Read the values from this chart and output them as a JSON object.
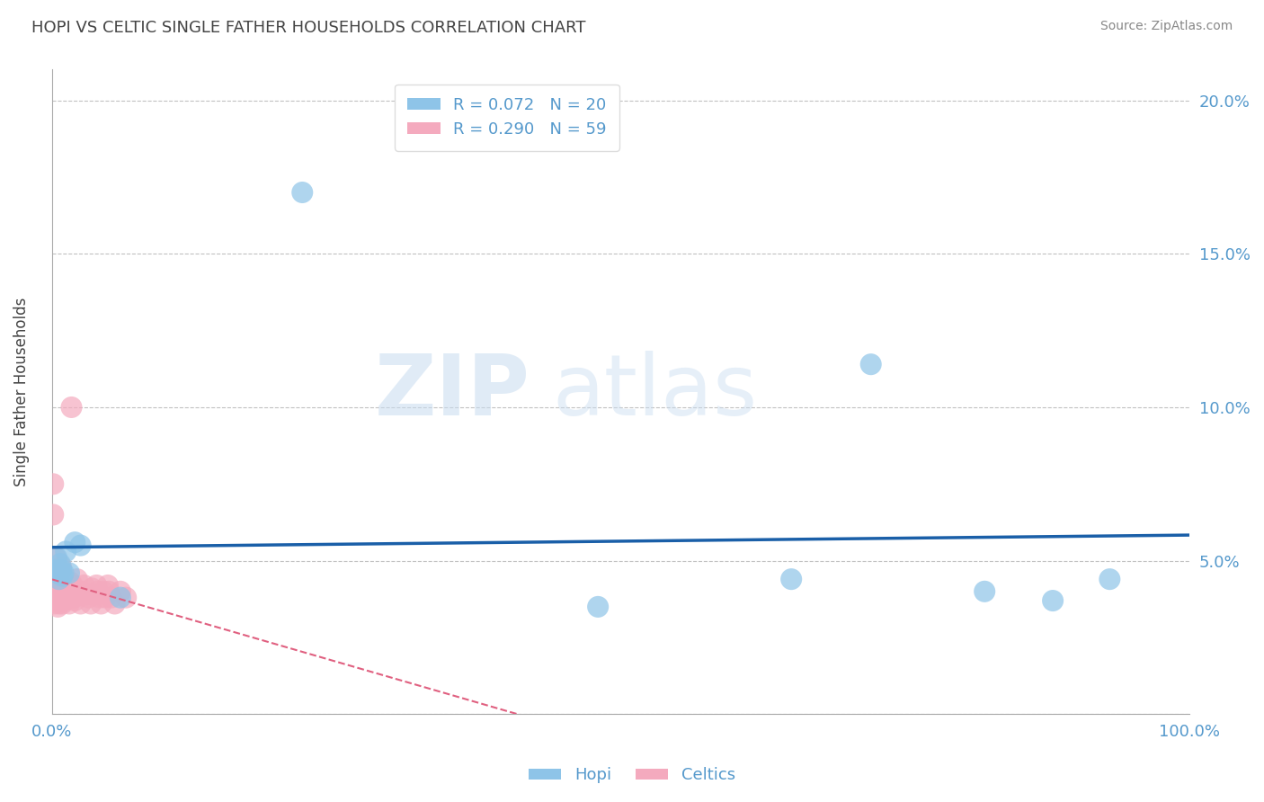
{
  "title": "HOPI VS CELTIC SINGLE FATHER HOUSEHOLDS CORRELATION CHART",
  "source_text": "Source: ZipAtlas.com",
  "ylabel": "Single Father Households",
  "watermark_zip": "ZIP",
  "watermark_atlas": "atlas",
  "legend_R": [
    0.072,
    0.29
  ],
  "legend_N": [
    20,
    59
  ],
  "xlim": [
    0.0,
    1.0
  ],
  "ylim": [
    0.0,
    0.21
  ],
  "xticks": [
    0.0,
    0.25,
    0.5,
    0.75,
    1.0
  ],
  "xtick_labels": [
    "0.0%",
    "",
    "",
    "",
    "100.0%"
  ],
  "ytick_right_labels": [
    "",
    "5.0%",
    "10.0%",
    "15.0%",
    "20.0%"
  ],
  "yticks": [
    0.0,
    0.05,
    0.1,
    0.15,
    0.2
  ],
  "hopi_color": "#8EC4E8",
  "celtics_color": "#F4AABE",
  "hopi_line_color": "#1A5FA8",
  "celtics_line_color": "#E06080",
  "background_color": "#FFFFFF",
  "grid_color": "#BBBBBB",
  "axis_label_color": "#5599CC",
  "title_color": "#444444",
  "hopi_x": [
    0.003,
    0.004,
    0.005,
    0.006,
    0.007,
    0.008,
    0.009,
    0.01,
    0.012,
    0.015,
    0.02,
    0.025,
    0.06,
    0.22,
    0.48,
    0.65,
    0.72,
    0.82,
    0.88,
    0.93
  ],
  "hopi_y": [
    0.047,
    0.051,
    0.046,
    0.044,
    0.049,
    0.047,
    0.045,
    0.046,
    0.053,
    0.046,
    0.056,
    0.055,
    0.038,
    0.17,
    0.035,
    0.044,
    0.114,
    0.04,
    0.037,
    0.044
  ],
  "celtics_x": [
    0.001,
    0.001,
    0.002,
    0.002,
    0.002,
    0.003,
    0.003,
    0.003,
    0.004,
    0.004,
    0.005,
    0.005,
    0.005,
    0.006,
    0.006,
    0.006,
    0.007,
    0.007,
    0.008,
    0.008,
    0.009,
    0.009,
    0.01,
    0.01,
    0.011,
    0.011,
    0.012,
    0.013,
    0.014,
    0.015,
    0.015,
    0.016,
    0.017,
    0.018,
    0.019,
    0.02,
    0.021,
    0.022,
    0.023,
    0.025,
    0.026,
    0.028,
    0.03,
    0.032,
    0.034,
    0.035,
    0.037,
    0.039,
    0.04,
    0.042,
    0.043,
    0.045,
    0.047,
    0.049,
    0.05,
    0.052,
    0.055,
    0.06,
    0.065
  ],
  "celtics_y": [
    0.065,
    0.075,
    0.036,
    0.042,
    0.038,
    0.039,
    0.051,
    0.037,
    0.037,
    0.042,
    0.04,
    0.043,
    0.035,
    0.036,
    0.04,
    0.037,
    0.042,
    0.047,
    0.048,
    0.038,
    0.036,
    0.041,
    0.038,
    0.043,
    0.037,
    0.04,
    0.04,
    0.042,
    0.039,
    0.036,
    0.04,
    0.043,
    0.1,
    0.042,
    0.038,
    0.037,
    0.04,
    0.044,
    0.039,
    0.036,
    0.04,
    0.042,
    0.039,
    0.038,
    0.036,
    0.041,
    0.039,
    0.042,
    0.04,
    0.038,
    0.036,
    0.04,
    0.038,
    0.042,
    0.04,
    0.038,
    0.036,
    0.04,
    0.038
  ]
}
